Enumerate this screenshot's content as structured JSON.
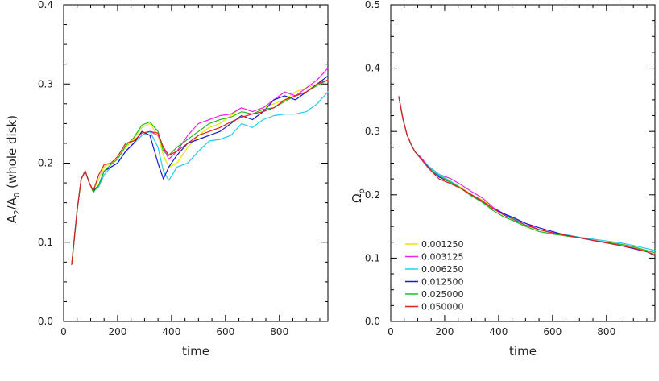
{
  "chart_data": [
    {
      "type": "line",
      "xlabel": "time",
      "ylabel": "A2/A0 (whole disk)",
      "ylabel_parts": {
        "a": "A",
        "a_sub": "2",
        "mid": "/A",
        "mid_sub": "0",
        "rest": " (whole disk)"
      },
      "xlim": [
        0,
        980
      ],
      "ylim": [
        0.0,
        0.4
      ],
      "xticks": [
        0,
        200,
        400,
        600,
        800
      ],
      "yticks": [
        0.0,
        0.1,
        0.2,
        0.3,
        0.4
      ],
      "ytick_labels": [
        "0.0",
        "0.1",
        "0.2",
        "0.3",
        "0.4"
      ],
      "series": [
        {
          "name": "0.001250",
          "color": "#e6e600",
          "x": [
            30,
            50,
            65,
            80,
            95,
            110,
            130,
            150,
            175,
            200,
            230,
            260,
            290,
            320,
            350,
            370,
            390,
            420,
            460,
            500,
            540,
            580,
            620,
            660,
            700,
            740,
            780,
            820,
            860,
            900,
            940,
            980
          ],
          "y": [
            0.072,
            0.14,
            0.18,
            0.19,
            0.175,
            0.165,
            0.18,
            0.195,
            0.2,
            0.205,
            0.22,
            0.23,
            0.245,
            0.25,
            0.235,
            0.21,
            0.195,
            0.2,
            0.22,
            0.235,
            0.245,
            0.25,
            0.26,
            0.27,
            0.265,
            0.27,
            0.275,
            0.28,
            0.29,
            0.295,
            0.3,
            0.31
          ]
        },
        {
          "name": "0.003125",
          "color": "#ee22ee",
          "x": [
            30,
            50,
            65,
            80,
            95,
            110,
            130,
            150,
            175,
            200,
            230,
            260,
            290,
            320,
            350,
            370,
            390,
            420,
            460,
            500,
            540,
            580,
            620,
            660,
            700,
            740,
            780,
            820,
            860,
            900,
            940,
            980
          ],
          "y": [
            0.072,
            0.14,
            0.18,
            0.19,
            0.175,
            0.165,
            0.17,
            0.19,
            0.195,
            0.2,
            0.215,
            0.225,
            0.235,
            0.24,
            0.235,
            0.22,
            0.205,
            0.215,
            0.235,
            0.25,
            0.255,
            0.26,
            0.262,
            0.27,
            0.265,
            0.27,
            0.28,
            0.29,
            0.285,
            0.295,
            0.305,
            0.32
          ]
        },
        {
          "name": "0.006250",
          "color": "#22ccee",
          "x": [
            30,
            50,
            65,
            80,
            95,
            110,
            130,
            150,
            175,
            200,
            230,
            260,
            290,
            320,
            350,
            370,
            390,
            420,
            460,
            500,
            540,
            580,
            620,
            660,
            700,
            740,
            780,
            820,
            860,
            900,
            940,
            980
          ],
          "y": [
            0.072,
            0.14,
            0.18,
            0.19,
            0.175,
            0.165,
            0.17,
            0.185,
            0.195,
            0.2,
            0.215,
            0.225,
            0.235,
            0.24,
            0.22,
            0.19,
            0.178,
            0.195,
            0.2,
            0.215,
            0.228,
            0.23,
            0.235,
            0.25,
            0.245,
            0.255,
            0.26,
            0.262,
            0.262,
            0.265,
            0.275,
            0.29
          ]
        },
        {
          "name": "0.012500",
          "color": "#1a1acc",
          "x": [
            30,
            50,
            65,
            80,
            95,
            110,
            130,
            150,
            175,
            200,
            230,
            260,
            290,
            320,
            350,
            370,
            390,
            420,
            460,
            500,
            540,
            580,
            620,
            660,
            700,
            740,
            780,
            820,
            860,
            900,
            940,
            980
          ],
          "y": [
            0.072,
            0.14,
            0.18,
            0.19,
            0.175,
            0.165,
            0.172,
            0.19,
            0.195,
            0.2,
            0.215,
            0.225,
            0.24,
            0.235,
            0.2,
            0.18,
            0.195,
            0.21,
            0.225,
            0.23,
            0.235,
            0.24,
            0.25,
            0.26,
            0.255,
            0.265,
            0.28,
            0.285,
            0.28,
            0.29,
            0.3,
            0.31
          ]
        },
        {
          "name": "0.025000",
          "color": "#22bb22",
          "x": [
            30,
            50,
            65,
            80,
            95,
            110,
            130,
            150,
            175,
            200,
            230,
            260,
            290,
            320,
            350,
            370,
            390,
            420,
            460,
            500,
            540,
            580,
            620,
            660,
            700,
            740,
            780,
            820,
            860,
            900,
            940,
            980
          ],
          "y": [
            0.072,
            0.14,
            0.18,
            0.19,
            0.175,
            0.163,
            0.172,
            0.19,
            0.198,
            0.205,
            0.222,
            0.232,
            0.248,
            0.252,
            0.24,
            0.215,
            0.21,
            0.22,
            0.23,
            0.24,
            0.25,
            0.255,
            0.258,
            0.265,
            0.262,
            0.268,
            0.27,
            0.278,
            0.285,
            0.29,
            0.298,
            0.305
          ]
        },
        {
          "name": "0.050000",
          "color": "#dd2222",
          "x": [
            30,
            50,
            65,
            80,
            95,
            110,
            130,
            150,
            175,
            200,
            230,
            260,
            290,
            320,
            350,
            370,
            390,
            420,
            460,
            500,
            540,
            580,
            620,
            660,
            700,
            740,
            780,
            820,
            860,
            900,
            940,
            980
          ],
          "y": [
            0.072,
            0.14,
            0.18,
            0.19,
            0.175,
            0.165,
            0.185,
            0.198,
            0.2,
            0.208,
            0.225,
            0.228,
            0.238,
            0.24,
            0.238,
            0.22,
            0.21,
            0.215,
            0.225,
            0.235,
            0.24,
            0.245,
            0.252,
            0.258,
            0.262,
            0.265,
            0.27,
            0.28,
            0.285,
            0.29,
            0.3,
            0.305
          ]
        }
      ]
    },
    {
      "type": "line",
      "xlabel": "time",
      "ylabel": "Ωp",
      "ylabel_parts": {
        "a": "Ω",
        "a_sub": "p"
      },
      "xlim": [
        0,
        980
      ],
      "ylim": [
        0.0,
        0.5
      ],
      "xticks": [
        0,
        200,
        400,
        600,
        800
      ],
      "yticks": [
        0.0,
        0.1,
        0.2,
        0.3,
        0.4,
        0.5
      ],
      "ytick_labels": [
        "0.0",
        "0.1",
        "0.2",
        "0.3",
        "0.4",
        "0.5"
      ],
      "legend": {
        "placement": "lower-left"
      },
      "series": [
        {
          "name": "0.001250",
          "color": "#e6e600",
          "x": [
            30,
            45,
            60,
            75,
            90,
            110,
            140,
            180,
            220,
            260,
            300,
            340,
            380,
            420,
            460,
            500,
            550,
            600,
            650,
            700,
            750,
            800,
            850,
            900,
            950,
            980
          ],
          "y": [
            0.355,
            0.32,
            0.295,
            0.28,
            0.268,
            0.258,
            0.245,
            0.232,
            0.222,
            0.212,
            0.2,
            0.192,
            0.178,
            0.168,
            0.162,
            0.152,
            0.145,
            0.14,
            0.135,
            0.132,
            0.128,
            0.125,
            0.122,
            0.118,
            0.112,
            0.108
          ]
        },
        {
          "name": "0.003125",
          "color": "#ee22ee",
          "x": [
            30,
            45,
            60,
            75,
            90,
            110,
            140,
            180,
            220,
            260,
            300,
            340,
            380,
            420,
            460,
            500,
            550,
            600,
            650,
            700,
            750,
            800,
            850,
            900,
            950,
            980
          ],
          "y": [
            0.355,
            0.32,
            0.295,
            0.28,
            0.268,
            0.26,
            0.245,
            0.232,
            0.226,
            0.216,
            0.205,
            0.195,
            0.18,
            0.17,
            0.162,
            0.155,
            0.145,
            0.14,
            0.135,
            0.132,
            0.128,
            0.125,
            0.12,
            0.115,
            0.11,
            0.105
          ]
        },
        {
          "name": "0.006250",
          "color": "#22ccee",
          "x": [
            30,
            45,
            60,
            75,
            90,
            110,
            140,
            180,
            220,
            260,
            300,
            340,
            380,
            420,
            460,
            500,
            550,
            600,
            650,
            700,
            750,
            800,
            850,
            900,
            950,
            980
          ],
          "y": [
            0.355,
            0.32,
            0.295,
            0.28,
            0.268,
            0.258,
            0.245,
            0.232,
            0.222,
            0.21,
            0.2,
            0.188,
            0.178,
            0.168,
            0.162,
            0.152,
            0.145,
            0.14,
            0.137,
            0.133,
            0.13,
            0.127,
            0.124,
            0.12,
            0.115,
            0.112
          ]
        },
        {
          "name": "0.012500",
          "color": "#1a1acc",
          "x": [
            30,
            45,
            60,
            75,
            90,
            110,
            140,
            180,
            220,
            260,
            300,
            340,
            380,
            420,
            460,
            500,
            550,
            600,
            650,
            700,
            750,
            800,
            850,
            900,
            950,
            980
          ],
          "y": [
            0.355,
            0.32,
            0.295,
            0.28,
            0.268,
            0.258,
            0.243,
            0.228,
            0.22,
            0.21,
            0.2,
            0.19,
            0.178,
            0.17,
            0.163,
            0.155,
            0.148,
            0.142,
            0.136,
            0.132,
            0.128,
            0.124,
            0.12,
            0.115,
            0.11,
            0.104
          ]
        },
        {
          "name": "0.025000",
          "color": "#22bb22",
          "x": [
            30,
            45,
            60,
            75,
            90,
            110,
            140,
            180,
            220,
            260,
            300,
            340,
            380,
            420,
            460,
            500,
            550,
            600,
            650,
            700,
            750,
            800,
            850,
            900,
            950,
            980
          ],
          "y": [
            0.355,
            0.32,
            0.295,
            0.28,
            0.268,
            0.258,
            0.242,
            0.23,
            0.22,
            0.21,
            0.198,
            0.188,
            0.175,
            0.165,
            0.158,
            0.15,
            0.142,
            0.138,
            0.135,
            0.132,
            0.128,
            0.125,
            0.122,
            0.118,
            0.112,
            0.108
          ]
        },
        {
          "name": "0.050000",
          "color": "#dd2222",
          "x": [
            30,
            45,
            60,
            75,
            90,
            110,
            140,
            180,
            220,
            260,
            300,
            340,
            380,
            420,
            460,
            500,
            550,
            600,
            650,
            700,
            750,
            800,
            850,
            900,
            950,
            980
          ],
          "y": [
            0.355,
            0.32,
            0.295,
            0.28,
            0.268,
            0.258,
            0.242,
            0.225,
            0.218,
            0.21,
            0.2,
            0.19,
            0.178,
            0.168,
            0.16,
            0.152,
            0.145,
            0.14,
            0.136,
            0.132,
            0.128,
            0.124,
            0.12,
            0.116,
            0.11,
            0.105
          ]
        }
      ]
    }
  ]
}
